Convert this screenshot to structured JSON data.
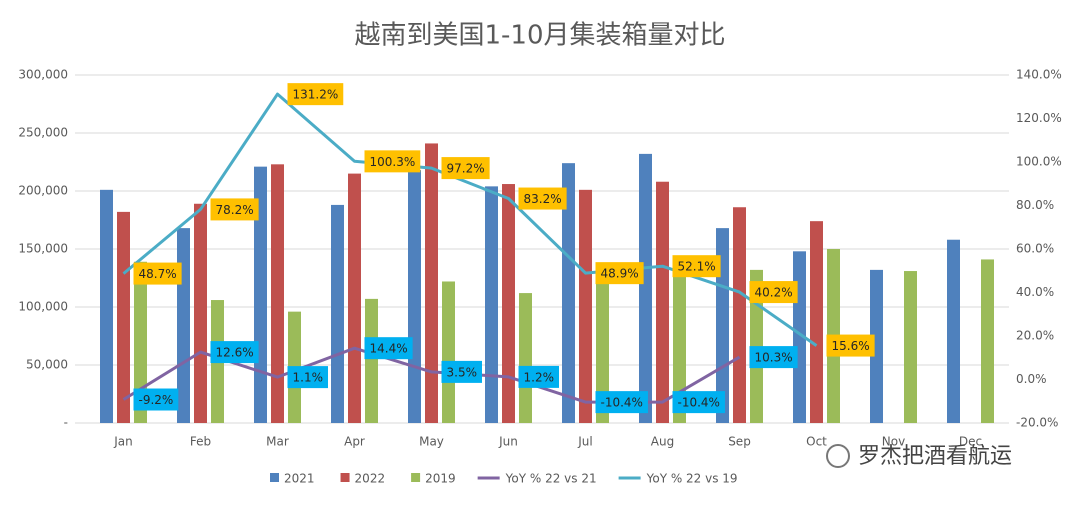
{
  "chart_data": {
    "type": "combo",
    "title": "越南到美国1-10月集装箱量对比",
    "categories": [
      "Jan",
      "Feb",
      "Mar",
      "Apr",
      "May",
      "Jun",
      "Jul",
      "Aug",
      "Sep",
      "Oct",
      "Nov",
      "Dec"
    ],
    "series": [
      {
        "name": "2021",
        "type": "bar",
        "color": "#4f81bd",
        "values": [
          201000,
          168000,
          221000,
          188000,
          218000,
          204000,
          224000,
          232000,
          168000,
          148000,
          132000,
          158000
        ]
      },
      {
        "name": "2022",
        "type": "bar",
        "color": "#c0504d",
        "values": [
          182000,
          189000,
          223000,
          215000,
          241000,
          206000,
          201000,
          208000,
          186000,
          174000,
          null,
          null
        ]
      },
      {
        "name": "2019",
        "type": "bar",
        "color": "#9bbb59",
        "values": [
          139000,
          106000,
          96000,
          107000,
          122000,
          112000,
          137000,
          136000,
          132000,
          150000,
          131000,
          141000
        ]
      },
      {
        "name": "YoY % 22 vs 21",
        "type": "line",
        "axis": "y2",
        "color": "#8064a2",
        "label_color": "#00b0f0",
        "values": [
          -9.2,
          12.6,
          1.1,
          14.4,
          3.5,
          1.2,
          -10.4,
          -10.4,
          10.3,
          null,
          null,
          null
        ],
        "value_labels": [
          "-9.2%",
          "12.6%",
          "1.1%",
          "14.4%",
          "3.5%",
          "1.2%",
          "-10.4%",
          "-10.4%",
          "10.3%",
          null,
          null,
          null
        ]
      },
      {
        "name": "YoY % 22 vs 19",
        "type": "line",
        "axis": "y2",
        "color": "#4bacc6",
        "label_color": "#ffc000",
        "values": [
          48.7,
          78.2,
          131.2,
          100.3,
          97.2,
          83.2,
          48.9,
          52.1,
          40.2,
          15.6,
          null,
          null
        ],
        "value_labels": [
          "48.7%",
          "78.2%",
          "131.2%",
          "100.3%",
          "97.2%",
          "83.2%",
          "48.9%",
          "52.1%",
          "40.2%",
          "15.6%",
          null,
          null
        ]
      }
    ],
    "ylim": [
      0,
      300000
    ],
    "yticks": [
      {
        "value": 0,
        "label": "-"
      },
      {
        "value": 50000,
        "label": "50,000"
      },
      {
        "value": 100000,
        "label": "100,000"
      },
      {
        "value": 150000,
        "label": "150,000"
      },
      {
        "value": 200000,
        "label": "200,000"
      },
      {
        "value": 250000,
        "label": "250,000"
      },
      {
        "value": 300000,
        "label": "300,000"
      }
    ],
    "y2lim": [
      -20,
      140
    ],
    "y2ticks": [
      {
        "value": -20,
        "label": "-20.0%"
      },
      {
        "value": 0,
        "label": "0.0%"
      },
      {
        "value": 20,
        "label": "20.0%"
      },
      {
        "value": 40,
        "label": "40.0%"
      },
      {
        "value": 60,
        "label": "60.0%"
      },
      {
        "value": 80,
        "label": "80.0%"
      },
      {
        "value": 100,
        "label": "100.0%"
      },
      {
        "value": 120,
        "label": "120.0%"
      },
      {
        "value": 140,
        "label": "140.0%"
      }
    ],
    "grid": true,
    "legend": "bottom",
    "watermark": "罗杰把酒看航运"
  }
}
